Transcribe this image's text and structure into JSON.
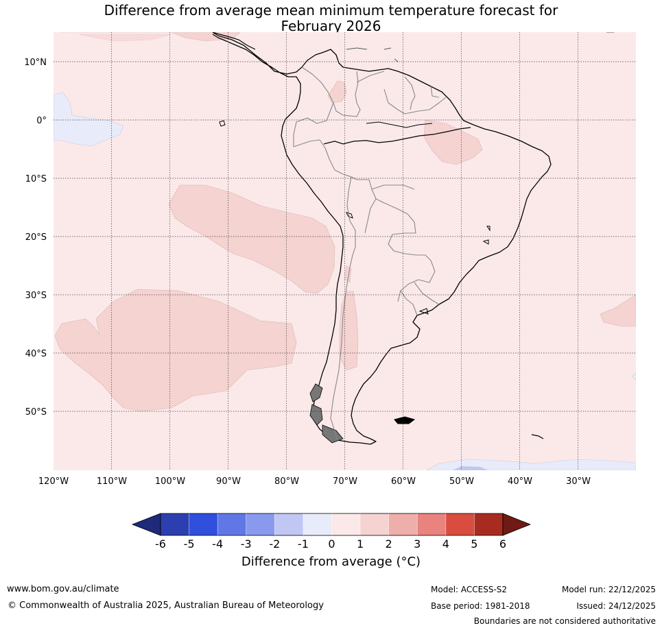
{
  "title": {
    "line1": "Difference from average mean minimum temperature forecast for",
    "line2": "February 2026"
  },
  "map": {
    "region": "South America",
    "lat_labels": [
      "10°N",
      "0°",
      "10°S",
      "20°S",
      "30°S",
      "40°S",
      "50°S"
    ],
    "lon_labels": [
      "120°W",
      "110°W",
      "100°W",
      "90°W",
      "80°W",
      "70°W",
      "60°W",
      "50°W",
      "40°W",
      "30°W"
    ],
    "background_category": "0 to 1",
    "regions": [
      {
        "name": "east-pacific-warm-band",
        "category": "1 to 2"
      },
      {
        "name": "south-pacific-warm-patch",
        "category": "1 to 2"
      },
      {
        "name": "northeast-brazil-warm-patch",
        "category": "1 to 2"
      },
      {
        "name": "colombia-warm-patch",
        "category": "1 to 2"
      },
      {
        "name": "andes-warm-strip",
        "category": "1 to 2"
      },
      {
        "name": "south-atlantic-warm-patch",
        "category": "1 to 2"
      },
      {
        "name": "equatorial-pacific-cool-patch",
        "category": "-1 to 0"
      },
      {
        "name": "south-atlantic-cool-patch",
        "category": "-1 to 0"
      }
    ]
  },
  "colorbar": {
    "title": "Difference from average (°C)",
    "ticks": [
      "-6",
      "-5",
      "-4",
      "-3",
      "-2",
      "-1",
      "0",
      "1",
      "2",
      "3",
      "4",
      "5",
      "6"
    ],
    "colors": [
      "#1f2a7a",
      "#2b3fb0",
      "#2f4fdc",
      "#5f78e6",
      "#8899ee",
      "#c0c7f3",
      "#e8ebf9",
      "#fbe9e9",
      "#f4d3d1",
      "#eeaeaa",
      "#e8837d",
      "#d94d40",
      "#a82b20",
      "#6f1a15"
    ]
  },
  "footer": {
    "website": "www.bom.gov.au/climate",
    "copyright": "© Commonwealth of Australia 2025, Australian Bureau of Meteorology",
    "model": "Model: ACCESS-S2",
    "base_period": "Base period: 1981-2018",
    "model_run": "Model run: 22/12/2025",
    "issued": "Issued: 24/12/2025",
    "disclaimer": "Boundaries are not considered authoritative"
  }
}
